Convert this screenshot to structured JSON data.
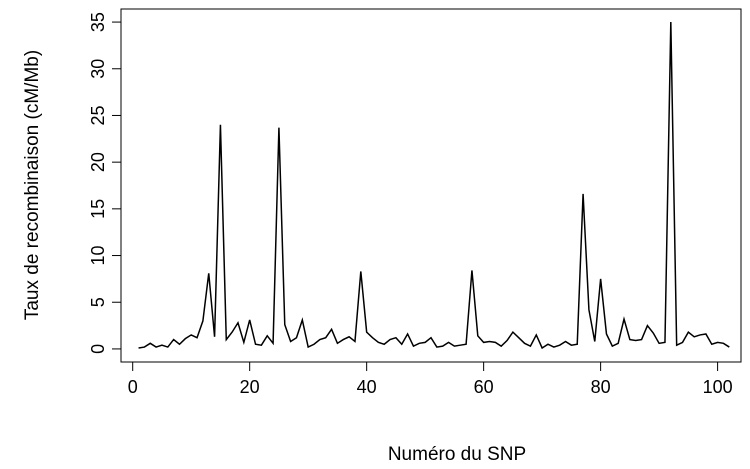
{
  "chart_data": {
    "type": "line",
    "xlabel": "Numéro du SNP",
    "ylabel": "Taux de recombinaison (cM/Mb)",
    "xlim": [
      -2,
      104
    ],
    "ylim": [
      -1.4,
      36.4
    ],
    "xticks": [
      0,
      20,
      40,
      60,
      80,
      100
    ],
    "yticks": [
      0,
      5,
      10,
      15,
      20,
      25,
      30,
      35
    ],
    "grid": false,
    "series": [
      {
        "color": "#000000",
        "x": [
          1,
          2,
          3,
          4,
          5,
          6,
          7,
          8,
          9,
          10,
          11,
          12,
          13,
          14,
          15,
          16,
          17,
          18,
          19,
          20,
          21,
          22,
          23,
          24,
          25,
          26,
          27,
          28,
          29,
          30,
          31,
          32,
          33,
          34,
          35,
          36,
          37,
          38,
          39,
          40,
          41,
          42,
          43,
          44,
          45,
          46,
          47,
          48,
          49,
          50,
          51,
          52,
          53,
          54,
          55,
          56,
          57,
          58,
          59,
          60,
          61,
          62,
          63,
          64,
          65,
          66,
          67,
          68,
          69,
          70,
          71,
          72,
          73,
          74,
          75,
          76,
          77,
          78,
          79,
          80,
          81,
          82,
          83,
          84,
          85,
          86,
          87,
          88,
          89,
          90,
          91,
          92,
          93,
          94,
          95,
          96,
          97,
          98,
          99,
          100,
          101,
          102
        ],
        "y": [
          0.1,
          0.2,
          0.6,
          0.2,
          0.4,
          0.2,
          1.0,
          0.5,
          1.1,
          1.5,
          1.2,
          3.0,
          8.1,
          1.3,
          24.0,
          1.0,
          1.8,
          2.8,
          0.7,
          3.1,
          0.5,
          0.4,
          1.4,
          0.6,
          23.7,
          2.6,
          0.8,
          1.2,
          3.1,
          0.2,
          0.5,
          1.0,
          1.2,
          2.1,
          0.6,
          1.0,
          1.3,
          0.8,
          8.3,
          1.8,
          1.2,
          0.7,
          0.5,
          1.0,
          1.2,
          0.5,
          1.6,
          0.3,
          0.6,
          0.7,
          1.2,
          0.2,
          0.3,
          0.7,
          0.3,
          0.4,
          0.5,
          8.4,
          1.4,
          0.7,
          0.8,
          0.7,
          0.3,
          0.9,
          1.8,
          1.2,
          0.6,
          0.3,
          1.5,
          0.1,
          0.5,
          0.2,
          0.4,
          0.8,
          0.4,
          0.5,
          16.6,
          4.2,
          0.8,
          7.5,
          1.6,
          0.3,
          0.6,
          3.2,
          1.0,
          0.9,
          1.0,
          2.5,
          1.7,
          0.6,
          0.7,
          35.0,
          0.4,
          0.7,
          1.8,
          1.3,
          1.5,
          1.6,
          0.5,
          0.7,
          0.6,
          0.2
        ]
      }
    ]
  }
}
